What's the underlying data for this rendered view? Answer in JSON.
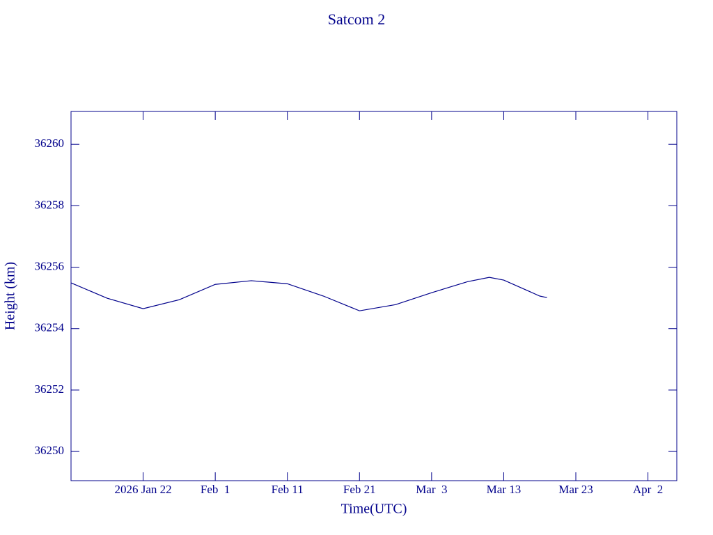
{
  "chart_data": {
    "type": "line",
    "title": "Satcom 2",
    "x_label": "Time(UTC)",
    "y_label": "Height (km)",
    "color": "#00008b",
    "xlim": [
      "2026-01-12",
      "2026-04-06"
    ],
    "xticks": [
      {
        "value": "2026-01-22",
        "label": "2026 Jan 22"
      },
      {
        "value": "2026-02-01",
        "label": "Feb  1"
      },
      {
        "value": "2026-02-11",
        "label": "Feb 11"
      },
      {
        "value": "2026-02-21",
        "label": "Feb 21"
      },
      {
        "value": "2026-03-03",
        "label": "Mar  3"
      },
      {
        "value": "2026-03-13",
        "label": "Mar 13"
      },
      {
        "value": "2026-03-23",
        "label": "Mar 23"
      },
      {
        "value": "2026-04-02",
        "label": "Apr  2"
      }
    ],
    "ylim": [
      36249.05,
      36261.07
    ],
    "yticks": [
      36250,
      36252,
      36254,
      36256,
      36258,
      36260
    ],
    "x": [
      "2026-01-12",
      "2026-01-17",
      "2026-01-22",
      "2026-01-27",
      "2026-02-01",
      "2026-02-06",
      "2026-02-11",
      "2026-02-16",
      "2026-02-21",
      "2026-02-26",
      "2026-03-03",
      "2026-03-08",
      "2026-03-11",
      "2026-03-13",
      "2026-03-18",
      "2026-03-19"
    ],
    "series": [
      {
        "name": "Satcom 2",
        "color": "#00008b",
        "values": [
          36255.49,
          36254.99,
          36254.65,
          36254.94,
          36255.44,
          36255.56,
          36255.46,
          36255.06,
          36254.58,
          36254.78,
          36255.17,
          36255.53,
          36255.67,
          36255.58,
          36255.06,
          36255.01
        ]
      }
    ]
  }
}
